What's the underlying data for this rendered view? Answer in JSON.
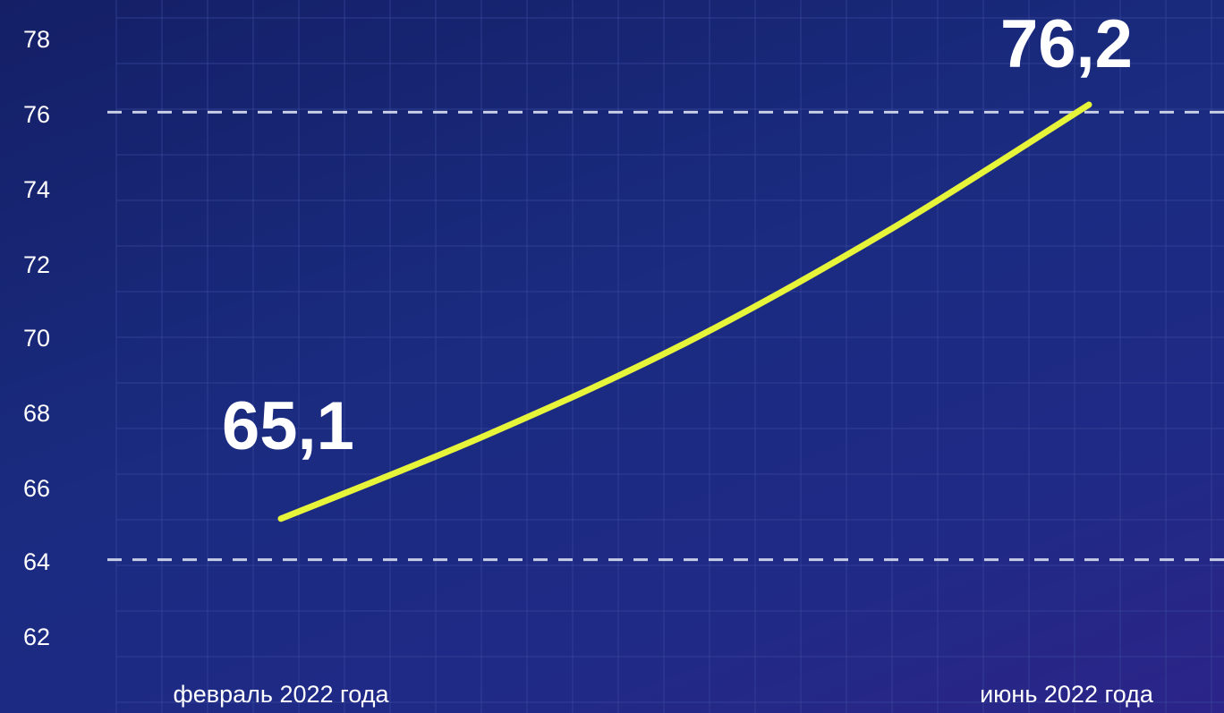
{
  "chart_data": {
    "type": "line",
    "categories": [
      "февраль 2022 года",
      "июнь 2022 года"
    ],
    "x": [
      0,
      1,
      2,
      3,
      4
    ],
    "y": [
      65.1,
      67.3,
      69.8,
      72.8,
      76.2
    ],
    "ylim": [
      62,
      78
    ],
    "yticks": [
      "78",
      "76",
      "74",
      "72",
      "70",
      "68",
      "66",
      "64",
      "62"
    ],
    "reference_lines": [
      76,
      64
    ],
    "data_labels": [
      "65,1",
      "76,2"
    ],
    "grid": true,
    "colors": {
      "line": "#e6f53a",
      "reference": "#c8cde6",
      "grid": "#3b4a9e"
    }
  }
}
